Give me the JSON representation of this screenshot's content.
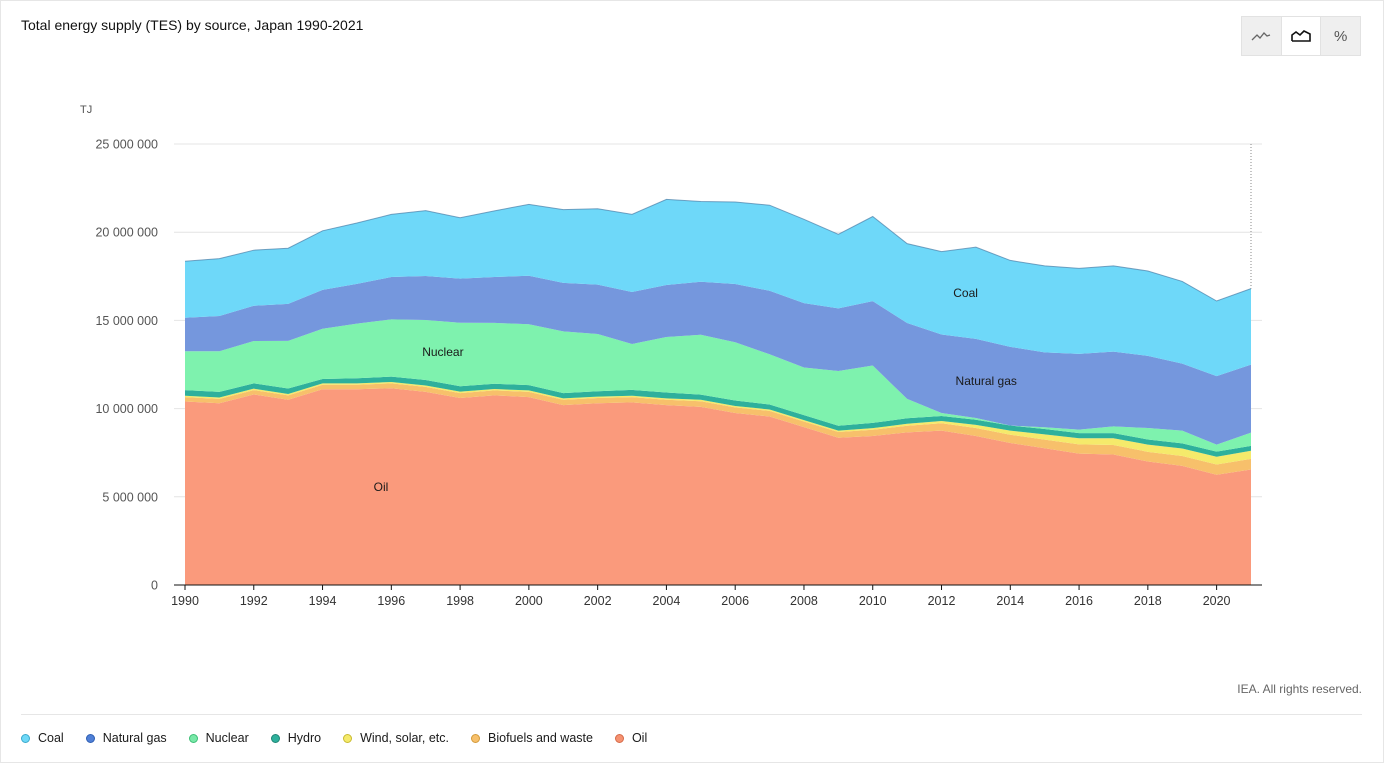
{
  "title": "Total energy supply (TES) by source, Japan 1990-2021",
  "toggle": {
    "buttons": [
      {
        "name": "line-chart-icon",
        "glyph": "line",
        "active": false
      },
      {
        "name": "stacked-area-icon",
        "glyph": "area",
        "active": true
      },
      {
        "name": "percent-icon",
        "glyph": "%",
        "active": false
      }
    ]
  },
  "rights": "IEA. All rights reserved.",
  "legend": [
    {
      "label": "Coal",
      "color": "#6ed8f7",
      "border": "#3aa9cc"
    },
    {
      "label": "Natural gas",
      "color": "#4f7fd6",
      "border": "#2e5fb3"
    },
    {
      "label": "Nuclear",
      "color": "#79e8a8",
      "border": "#3cbf76"
    },
    {
      "label": "Hydro",
      "color": "#2eb09c",
      "border": "#1e8575"
    },
    {
      "label": "Wind, solar, etc.",
      "color": "#f5ea6b",
      "border": "#c9bb30"
    },
    {
      "label": "Biofuels and waste",
      "color": "#f7c06b",
      "border": "#d29a3a"
    },
    {
      "label": "Oil",
      "color": "#f59271",
      "border": "#d66a48"
    }
  ],
  "chart_data": {
    "type": "area",
    "stacked": true,
    "unit_label": "TJ",
    "ylim": [
      0,
      25000000
    ],
    "yticks": [
      0,
      5000000,
      10000000,
      15000000,
      20000000,
      25000000
    ],
    "ytick_labels": [
      "0",
      "5 000 000",
      "10 000 000",
      "15 000 000",
      "20 000 000",
      "25 000 000"
    ],
    "xticks": [
      1990,
      1992,
      1994,
      1996,
      1998,
      2000,
      2002,
      2004,
      2006,
      2008,
      2010,
      2012,
      2014,
      2016,
      2018,
      2020
    ],
    "x": [
      1990,
      1991,
      1992,
      1993,
      1994,
      1995,
      1996,
      1997,
      1998,
      1999,
      2000,
      2001,
      2002,
      2003,
      2004,
      2005,
      2006,
      2007,
      2008,
      2009,
      2010,
      2011,
      2012,
      2013,
      2014,
      2015,
      2016,
      2017,
      2018,
      2019,
      2020,
      2021
    ],
    "grid": true,
    "series": [
      {
        "name": "Oil",
        "color": "#fa9a7c",
        "label_at": 1995.7,
        "values": [
          10400000,
          10300000,
          10800000,
          10500000,
          11100000,
          11100000,
          11150000,
          10950000,
          10600000,
          10750000,
          10650000,
          10200000,
          10300000,
          10350000,
          10200000,
          10100000,
          9750000,
          9550000,
          8950000,
          8350000,
          8450000,
          8650000,
          8750000,
          8450000,
          8050000,
          7750000,
          7450000,
          7400000,
          7000000,
          6750000,
          6250000,
          6550000
        ]
      },
      {
        "name": "Biofuels and waste",
        "color": "#f7c06b",
        "label_at": null,
        "values": [
          250000,
          250000,
          250000,
          250000,
          250000,
          250000,
          280000,
          280000,
          280000,
          280000,
          300000,
          300000,
          300000,
          300000,
          300000,
          320000,
          320000,
          320000,
          320000,
          320000,
          350000,
          380000,
          420000,
          450000,
          470000,
          490000,
          520000,
          540000,
          550000,
          560000,
          580000,
          600000
        ]
      },
      {
        "name": "Wind, solar, etc.",
        "color": "#f5ea6b",
        "label_at": null,
        "values": [
          80000,
          80000,
          80000,
          80000,
          80000,
          80000,
          80000,
          80000,
          80000,
          80000,
          80000,
          80000,
          80000,
          80000,
          80000,
          80000,
          80000,
          80000,
          80000,
          80000,
          90000,
          110000,
          130000,
          180000,
          230000,
          300000,
          350000,
          380000,
          410000,
          430000,
          440000,
          460000
        ]
      },
      {
        "name": "Hydro",
        "color": "#2eb09c",
        "label_at": null,
        "values": [
          320000,
          320000,
          300000,
          310000,
          250000,
          290000,
          300000,
          310000,
          310000,
          300000,
          300000,
          300000,
          300000,
          330000,
          330000,
          290000,
          310000,
          280000,
          280000,
          280000,
          300000,
          310000,
          280000,
          290000,
          290000,
          300000,
          290000,
          290000,
          290000,
          290000,
          290000,
          280000
        ]
      },
      {
        "name": "Nuclear",
        "color": "#7ef2ae",
        "label_at": 1997.5,
        "values": [
          2200000,
          2300000,
          2400000,
          2700000,
          2850000,
          3100000,
          3250000,
          3400000,
          3600000,
          3450000,
          3450000,
          3500000,
          3250000,
          2600000,
          3150000,
          3400000,
          3300000,
          2850000,
          2700000,
          3100000,
          3250000,
          1100000,
          170000,
          100000,
          0,
          100000,
          200000,
          380000,
          650000,
          720000,
          400000,
          750000
        ]
      },
      {
        "name": "Natural gas",
        "color": "#7597dd",
        "label_at": 2013.3,
        "values": [
          1900000,
          2000000,
          2000000,
          2100000,
          2200000,
          2250000,
          2400000,
          2500000,
          2500000,
          2600000,
          2750000,
          2750000,
          2800000,
          2950000,
          2950000,
          3000000,
          3300000,
          3600000,
          3650000,
          3550000,
          3650000,
          4300000,
          4450000,
          4480000,
          4460000,
          4250000,
          4290000,
          4240000,
          4090000,
          3800000,
          3880000,
          3850000
        ]
      },
      {
        "name": "Coal",
        "color": "#6ed8f9",
        "label_at": 2012.7,
        "values": [
          3200000,
          3250000,
          3150000,
          3150000,
          3350000,
          3450000,
          3550000,
          3700000,
          3450000,
          3750000,
          4050000,
          4150000,
          4300000,
          4400000,
          4850000,
          4550000,
          4650000,
          4850000,
          4750000,
          4200000,
          4800000,
          4500000,
          4700000,
          5200000,
          4900000,
          4900000,
          4850000,
          4860000,
          4810000,
          4660000,
          4260000,
          4310000
        ]
      }
    ]
  }
}
